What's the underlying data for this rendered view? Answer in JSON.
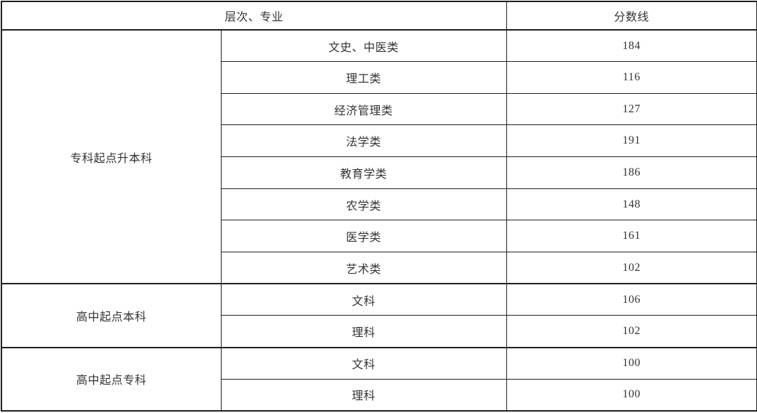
{
  "table": {
    "header": {
      "level_major_label": "层次、专业",
      "score_label": "分数线"
    },
    "sections": [
      {
        "level": "专科起点升本科",
        "rows": [
          {
            "major": "文史、中医类",
            "score": "184"
          },
          {
            "major": "理工类",
            "score": "116"
          },
          {
            "major": "经济管理类",
            "score": "127"
          },
          {
            "major": "法学类",
            "score": "191"
          },
          {
            "major": "教育学类",
            "score": "186"
          },
          {
            "major": "农学类",
            "score": "148"
          },
          {
            "major": "医学类",
            "score": "161"
          },
          {
            "major": "艺术类",
            "score": "102"
          }
        ]
      },
      {
        "level": "高中起点本科",
        "rows": [
          {
            "major": "文科",
            "score": "106"
          },
          {
            "major": "理科",
            "score": "102"
          }
        ]
      },
      {
        "level": "高中起点专科",
        "rows": [
          {
            "major": "文科",
            "score": "100"
          },
          {
            "major": "理科",
            "score": "100"
          }
        ]
      }
    ]
  },
  "colors": {
    "border": "#1f1f1f",
    "text": "#333333",
    "background": "#ffffff"
  }
}
